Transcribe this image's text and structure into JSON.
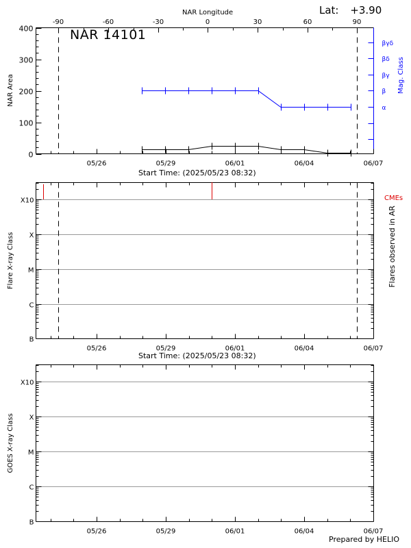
{
  "header": {
    "lat_label": "Lat:",
    "lat_value": "+3.90",
    "region_title": "NAR 14101"
  },
  "footer": {
    "credit": "Prepared by HELIO"
  },
  "colors": {
    "axis": "#000000",
    "mag_class": "#0000ff",
    "cme": "#dd0000",
    "gridline": "#999999",
    "area_series": "#000000"
  },
  "x_axis": {
    "date_ticks": [
      "05/26",
      "05/29",
      "06/01",
      "06/04",
      "06/07"
    ],
    "start_time_label": "Start Time: (2025/05/23 08:32)"
  },
  "chart_data": [
    {
      "type": "line",
      "title": "NAR 14101",
      "xlabel": "Start Time: (2025/05/23 08:32)",
      "ylabel": "NAR Area",
      "y2label": "Mag. Class",
      "top_axis_label": "NAR Longitude",
      "top_axis_ticks": [
        -90,
        -60,
        -30,
        0,
        30,
        60,
        90
      ],
      "ylim": [
        0,
        400
      ],
      "yticks": [
        0,
        100,
        200,
        300,
        400
      ],
      "y2_ticks": [
        "βγδ",
        "βδ",
        "βγ",
        "β",
        "α"
      ],
      "x_tick_labels": [
        "05/26",
        "05/29",
        "06/01",
        "06/04",
        "06/07"
      ],
      "x_days_from_start": [
        4.85,
        5.85,
        6.85,
        7.85,
        8.85,
        9.85,
        10.85,
        11.85,
        12.85,
        13.85
      ],
      "x_dates": [
        "05/28",
        "05/29",
        "05/30",
        "05/31",
        "06/01",
        "06/02",
        "06/03",
        "06/04",
        "06/05",
        "06/06"
      ],
      "series": [
        {
          "name": "NAR Area",
          "color": "#000000",
          "values": [
            15,
            15,
            15,
            26,
            26,
            26,
            15,
            15,
            4,
            4
          ]
        },
        {
          "name": "Mag. Class",
          "color": "#0000ff",
          "axis": "right",
          "values": [
            "β",
            "β",
            "β",
            "β",
            "β",
            "β",
            "α",
            "α",
            "α",
            "α"
          ]
        }
      ],
      "vertical_markers": [
        {
          "label": "limb -90",
          "longitude": -90,
          "style": "dashed"
        },
        {
          "label": "limb +90",
          "longitude": 90,
          "style": "dashed"
        }
      ],
      "annotations": [
        "Lat: +3.90"
      ]
    },
    {
      "type": "scatter",
      "xlabel": "Start Time: (2025/05/23 08:32)",
      "ylabel": "Flare X-ray Class",
      "y2label": "Flares observed in AR",
      "yticks": [
        "B",
        "C",
        "M",
        "X",
        "X10"
      ],
      "x_tick_labels": [
        "05/26",
        "05/29",
        "06/01",
        "06/04",
        "06/07"
      ],
      "legend": [
        "CMEs"
      ],
      "cme_events_days_from_start": [
        0.32,
        7.6
      ],
      "flares": [],
      "vertical_markers": [
        "dashed @ -90 lon",
        "dashed @ +90 lon"
      ]
    },
    {
      "type": "line",
      "ylabel": "GOES X-ray Class",
      "yticks": [
        "B",
        "C",
        "M",
        "X",
        "X10"
      ],
      "x_tick_labels": [
        "05/26",
        "05/29",
        "06/01",
        "06/04",
        "06/07"
      ],
      "series": []
    }
  ],
  "panels": {
    "area": {
      "ylabel": "NAR Area",
      "y2label": "Mag. Class",
      "top_axis_label": "NAR Longitude",
      "yticks": [
        "0",
        "100",
        "200",
        "300",
        "400"
      ],
      "lon_ticks": [
        "-90",
        "-60",
        "-30",
        "0",
        "30",
        "60",
        "90"
      ],
      "mag_ticks": [
        "βγδ",
        "βδ",
        "βγ",
        "β",
        "α"
      ]
    },
    "flares": {
      "ylabel": "Flare X-ray Class",
      "y2label": "Flares observed in AR",
      "legend_cme": "CMEs",
      "yticks": [
        "B",
        "C",
        "M",
        "X",
        "X10"
      ]
    },
    "goes": {
      "ylabel": "GOES X-ray Class",
      "yticks": [
        "B",
        "C",
        "M",
        "X",
        "X10"
      ]
    }
  }
}
